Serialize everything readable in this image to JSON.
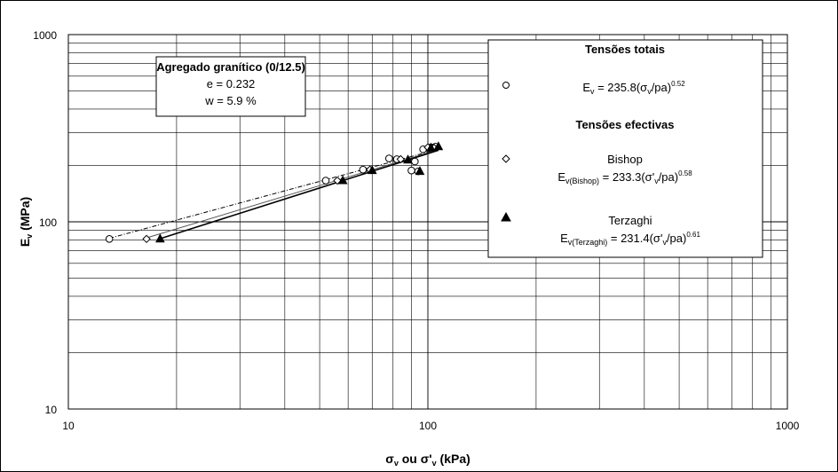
{
  "chart_data": {
    "type": "scatter",
    "xscale": "log",
    "yscale": "log",
    "xlim": [
      10,
      1000
    ],
    "ylim": [
      10,
      1000
    ],
    "grid": true,
    "xticks": [
      "10",
      "100",
      "1000"
    ],
    "yticks": [
      "10",
      "100",
      "1000"
    ],
    "xlabel": {
      "sigma": "σ",
      "sub": "v",
      "mid": " ou  σ'",
      "sub2": "v",
      "end": " (kPa)"
    },
    "ylabel": {
      "main": "E",
      "sub": "v",
      "end": " (MPa)"
    },
    "info_box": {
      "title": "Agregado granítico  (0/12.5)",
      "line1": "e = 0.232",
      "line2": "w = 5.9 %"
    },
    "legend_placement": "top-right",
    "legend": {
      "totais_title": "Tensões totais",
      "efectivas_title": "Tensões efectivas",
      "bishop_name": "Bishop",
      "terzaghi_name": "Terzaghi"
    },
    "series": [
      {
        "name": "Tensões totais",
        "marker": "circle-open",
        "line": "dash-dot",
        "equation": {
          "lhs": "E",
          "lhs_sub": "v",
          "mid": " = 235.8(σ",
          "mid_sub": "v",
          "end": "/pa)",
          "exp": "0.52"
        },
        "fit": {
          "a": 235.8,
          "b": 0.52
        },
        "points": [
          [
            13,
            81
          ],
          [
            52,
            166
          ],
          [
            66,
            190
          ],
          [
            78,
            218
          ],
          [
            82,
            216
          ],
          [
            90,
            188
          ],
          [
            97,
            244
          ],
          [
            102,
            250
          ],
          [
            105,
            252
          ],
          [
            101,
            248
          ],
          [
            92,
            210
          ],
          [
            94,
            186
          ]
        ]
      },
      {
        "name": "Bishop",
        "marker": "diamond-open",
        "line": "solid-thin",
        "equation": {
          "lhs": "E",
          "lhs_sub": "v(Bishop)",
          "mid": " = 233.3(σ'",
          "mid_sub": "v",
          "end": "/pa)",
          "exp": "0.58"
        },
        "fit": {
          "a": 233.3,
          "b": 0.58
        },
        "points": [
          [
            16.5,
            81
          ],
          [
            56,
            166
          ],
          [
            69,
            190
          ],
          [
            84,
            216
          ],
          [
            100,
            250
          ],
          [
            104,
            248
          ]
        ]
      },
      {
        "name": "Terzaghi",
        "marker": "triangle-filled",
        "line": "solid",
        "equation": {
          "lhs": "E",
          "lhs_sub": "v(Terzaghi)",
          "mid": " = 231.4(σ'",
          "mid_sub": "v",
          "end": "/pa)",
          "exp": "0.61"
        },
        "fit": {
          "a": 231.4,
          "b": 0.61
        },
        "points": [
          [
            18,
            81
          ],
          [
            58,
            166
          ],
          [
            70,
            188
          ],
          [
            88,
            214
          ],
          [
            95,
            186
          ],
          [
            102,
            248
          ],
          [
            107,
            252
          ]
        ]
      }
    ]
  }
}
